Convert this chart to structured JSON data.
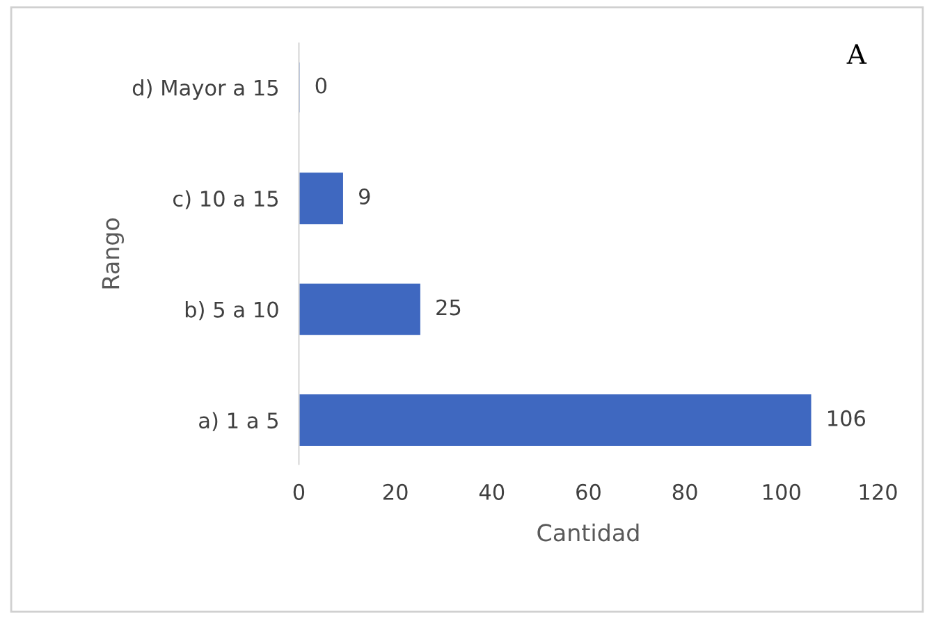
{
  "chart_data": {
    "type": "bar",
    "orientation": "horizontal",
    "categories": [
      "d) Mayor a 15",
      "c) 10 a 15",
      "b) 5 a 10",
      "a) 1 a 5"
    ],
    "values": [
      0,
      9,
      25,
      106
    ],
    "color": "#3f68c0",
    "xlim": [
      0,
      120
    ],
    "xticks": [
      0,
      20,
      40,
      60,
      80,
      100,
      120
    ],
    "xlabel": "Cantidad",
    "ylabel": "Rango",
    "annotations": [
      "A"
    ],
    "data_labels": true,
    "grid": false,
    "legend": false
  }
}
